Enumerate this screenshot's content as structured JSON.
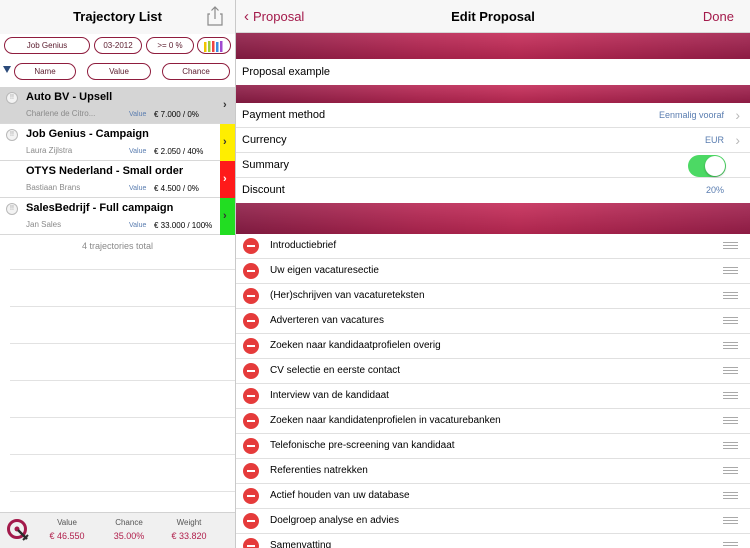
{
  "left_panel": {
    "title": "Trajectory List",
    "filters": [
      {
        "label": "Job Genius"
      },
      {
        "label": "03-2012"
      },
      {
        "label": ">= 0 %"
      }
    ],
    "sort": [
      "Name",
      "Value",
      "Chance"
    ],
    "trajectories": [
      {
        "title": "Auto BV - Upsell",
        "contact": "Charlene de Citro...",
        "value_label": "Value",
        "value": "€ 7.000 / 0%",
        "chance_color": "#d5d5d5"
      },
      {
        "title": "Job Genius - Campaign",
        "contact": "Laura Zijlstra",
        "value_label": "Value",
        "value": "€ 2.050 / 40%",
        "chance_color": "#ffee00"
      },
      {
        "title": "OTYS Nederland - Small order",
        "contact": "Bastiaan Brans",
        "value_label": "Value",
        "value": "€ 4.500 / 0%",
        "chance_color": "#ff1a1a"
      },
      {
        "title": "SalesBedrijf - Full campaign",
        "contact": "Jan Sales",
        "value_label": "Value",
        "value": "€ 33.000 / 100%",
        "chance_color": "#22dd22"
      }
    ],
    "total_text": "4 trajectories total",
    "footer": {
      "value_label": "Value",
      "value": "€ 46.550",
      "chance_label": "Chance",
      "chance": "35.00%",
      "weight_label": "Weight",
      "weight": "€ 33.820"
    }
  },
  "right_panel": {
    "back_label": "Proposal",
    "title": "Edit Proposal",
    "done_label": "Done",
    "proposal_name": "Proposal example",
    "fields": {
      "payment_method": {
        "label": "Payment method",
        "value": "Eenmalig vooraf"
      },
      "currency": {
        "label": "Currency",
        "value": "EUR"
      },
      "summary": {
        "label": "Summary",
        "enabled": true
      },
      "discount": {
        "label": "Discount",
        "value": "20%"
      }
    },
    "items": [
      "Introductiebrief",
      "Uw eigen vacaturesectie",
      "(Her)schrijven van vacatureteksten",
      "Adverteren van vacatures",
      "Zoeken naar kandidaatprofielen overig",
      "CV selectie en eerste contact",
      "Interview van de kandidaat",
      "Zoeken naar kandidatenprofielen in vacaturebanken",
      "Telefonische pre-screening van kandidaat",
      "Referenties natrekken",
      "Actief houden van uw database",
      "Doelgroep analyse en advies",
      "Samenvatting"
    ]
  },
  "colors": {
    "accent": "#a31a4b",
    "brand_band": "#b62552",
    "toggle_on": "#4cd964",
    "delete": "#e53b3b"
  },
  "icons": [
    "share-icon",
    "color-bars-icon",
    "sort-caret-icon",
    "status-icon",
    "chevron-right-icon",
    "chevron-left-icon",
    "delete-icon",
    "reorder-icon",
    "app-logo-icon"
  ]
}
